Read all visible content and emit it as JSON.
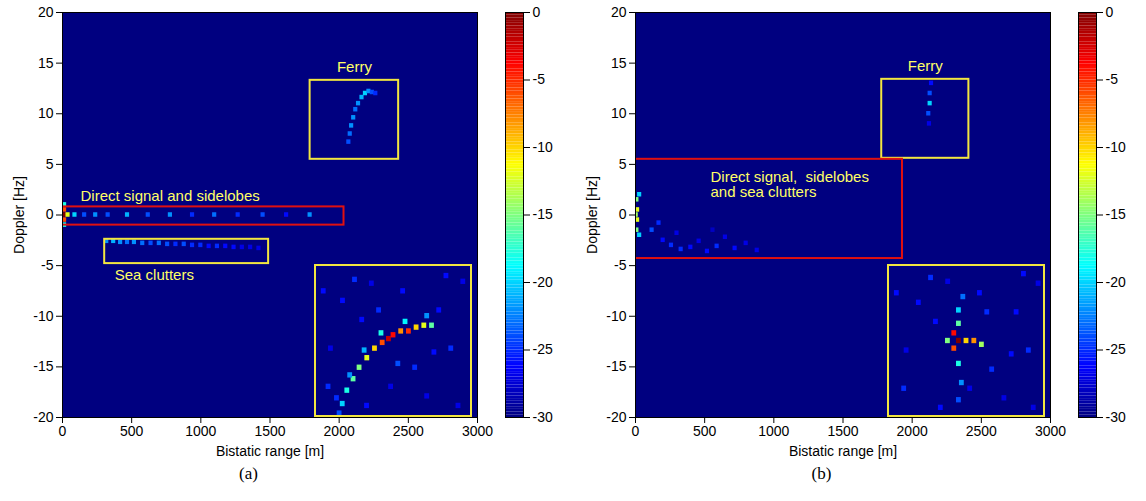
{
  "chart_data": [
    {
      "type": "heatmap",
      "caption": "(a)",
      "x_label": "Bistatic range [m]",
      "y_label": "Doppler [Hz]",
      "xlim": [
        0,
        3000
      ],
      "xticks": [
        0,
        500,
        1000,
        1500,
        2000,
        2500,
        3000
      ],
      "ylim": [
        -20,
        20
      ],
      "yticks": [
        -20,
        -15,
        -10,
        -5,
        0,
        5,
        10,
        15,
        20
      ],
      "clim": [
        -30,
        0
      ],
      "cticks": [
        0,
        -5,
        -10,
        -15,
        -20,
        -25,
        -30
      ],
      "cells": [
        [
          15,
          0,
          0
        ],
        [
          15,
          0.5,
          -6
        ],
        [
          15,
          -0.5,
          -6
        ],
        [
          40,
          0,
          -12
        ],
        [
          15,
          1,
          -18
        ],
        [
          15,
          -1,
          -18
        ],
        [
          90,
          0,
          -20
        ],
        [
          160,
          0,
          -24
        ],
        [
          240,
          0,
          -22
        ],
        [
          330,
          0,
          -24
        ],
        [
          470,
          0,
          -21
        ],
        [
          620,
          0,
          -24
        ],
        [
          780,
          0,
          -22
        ],
        [
          940,
          0,
          -25
        ],
        [
          1100,
          0,
          -23
        ],
        [
          1270,
          0,
          -25
        ],
        [
          1450,
          0,
          -24
        ],
        [
          1620,
          0,
          -26
        ],
        [
          1790,
          0,
          -22
        ],
        [
          320,
          -2.6,
          -22
        ],
        [
          370,
          -2.6,
          -21
        ],
        [
          420,
          -2.7,
          -22
        ],
        [
          470,
          -2.7,
          -23
        ],
        [
          520,
          -2.7,
          -22
        ],
        [
          580,
          -2.8,
          -23
        ],
        [
          640,
          -2.8,
          -24
        ],
        [
          700,
          -2.8,
          -23
        ],
        [
          760,
          -2.9,
          -24
        ],
        [
          820,
          -2.9,
          -25
        ],
        [
          880,
          -2.9,
          -24
        ],
        [
          940,
          -3.0,
          -25
        ],
        [
          1000,
          -3.0,
          -25
        ],
        [
          1060,
          -3.1,
          -26
        ],
        [
          1120,
          -3.1,
          -25
        ],
        [
          1180,
          -3.1,
          -26
        ],
        [
          1240,
          -3.2,
          -26
        ],
        [
          1300,
          -3.2,
          -27
        ],
        [
          1360,
          -3.2,
          -27
        ],
        [
          1420,
          -3.3,
          -27
        ],
        [
          2070,
          7.2,
          -24
        ],
        [
          2080,
          8.0,
          -23
        ],
        [
          2090,
          8.8,
          -22
        ],
        [
          2105,
          9.6,
          -22
        ],
        [
          2120,
          10.4,
          -23
        ],
        [
          2140,
          11.0,
          -22
        ],
        [
          2165,
          11.6,
          -21
        ],
        [
          2190,
          12.0,
          -20
        ],
        [
          2215,
          12.2,
          -22
        ],
        [
          2240,
          12.1,
          -24
        ],
        [
          2265,
          12.0,
          -25
        ]
      ],
      "annotations": [
        {
          "label": "Ferry",
          "color": "#f2e640",
          "x1": 1790,
          "x2": 2430,
          "y1": 5.5,
          "y2": 13.3,
          "anchor": "above"
        },
        {
          "label": "Direct signal and sidelobes",
          "color": "#e01010",
          "x1": 0,
          "x2": 2035,
          "y1": -1.0,
          "y2": 0.8,
          "anchor": "above-left"
        },
        {
          "label": "Sea clutters",
          "color": "#f2e640",
          "x1": 305,
          "x2": 1490,
          "y1": -4.8,
          "y2": -2.4,
          "anchor": "below-left"
        }
      ],
      "inset": {
        "color": "#f2e640",
        "xlim": [
          1790,
          2430
        ],
        "ylim": [
          5.5,
          13.3
        ],
        "cells": [
          [
            1886,
            5.6,
            -24
          ],
          [
            1899,
            6.1,
            -20
          ],
          [
            1918,
            6.8,
            -18
          ],
          [
            1944,
            7.4,
            -16
          ],
          [
            1969,
            8.0,
            -15
          ],
          [
            2001,
            8.5,
            -12
          ],
          [
            2033,
            9.0,
            -10
          ],
          [
            2065,
            9.3,
            -6
          ],
          [
            2091,
            9.5,
            -2
          ],
          [
            2110,
            9.7,
            -4
          ],
          [
            2142,
            9.9,
            -8
          ],
          [
            2174,
            9.9,
            -5
          ],
          [
            2206,
            10.1,
            -10
          ],
          [
            2238,
            10.2,
            -12
          ],
          [
            2270,
            10.2,
            -16
          ],
          [
            1930,
            7.6,
            -22
          ],
          [
            1990,
            8.9,
            -21
          ],
          [
            2060,
            9.8,
            -18
          ],
          [
            2160,
            10.4,
            -19
          ],
          [
            2250,
            10.7,
            -22
          ],
          [
            1875,
            6.4,
            -25
          ],
          [
            1820,
            12,
            -26
          ],
          [
            1850,
            9,
            -27
          ],
          [
            1900,
            11.5,
            -26
          ],
          [
            1950,
            12.6,
            -25
          ],
          [
            2000,
            6,
            -26
          ],
          [
            2050,
            11,
            -25
          ],
          [
            2100,
            7,
            -27
          ],
          [
            2150,
            12,
            -26
          ],
          [
            2200,
            8,
            -25
          ],
          [
            2250,
            6.5,
            -27
          ],
          [
            2300,
            11,
            -26
          ],
          [
            2350,
            9,
            -25
          ],
          [
            2400,
            12.5,
            -27
          ],
          [
            1840,
            7,
            -25
          ],
          [
            1980,
            10.5,
            -26
          ],
          [
            2130,
            8.2,
            -24
          ],
          [
            2280,
            8.8,
            -26
          ],
          [
            2380,
            6,
            -27
          ],
          [
            2020,
            12.4,
            -27
          ],
          [
            2330,
            12.8,
            -26
          ]
        ]
      }
    },
    {
      "type": "heatmap",
      "caption": "(b)",
      "x_label": "Bistatic range [m]",
      "y_label": "Doppler [Hz]",
      "xlim": [
        0,
        3000
      ],
      "xticks": [
        0,
        500,
        1000,
        1500,
        2000,
        2500,
        3000
      ],
      "ylim": [
        -20,
        20
      ],
      "yticks": [
        -20,
        -15,
        -10,
        -5,
        0,
        5,
        10,
        15,
        20
      ],
      "clim": [
        -30,
        0
      ],
      "cticks": [
        0,
        -5,
        -10,
        -15,
        -20,
        -25,
        -30
      ],
      "cells": [
        [
          10,
          1.5,
          -15
        ],
        [
          15,
          0.5,
          -12
        ],
        [
          15,
          -0.5,
          -12
        ],
        [
          10,
          -1.5,
          -15
        ],
        [
          30,
          2,
          -20
        ],
        [
          30,
          -2,
          -20
        ],
        [
          5,
          0,
          -14
        ],
        [
          120,
          -1.5,
          -24
        ],
        [
          200,
          -2.5,
          -26
        ],
        [
          260,
          -3.0,
          -25
        ],
        [
          330,
          -3.4,
          -25
        ],
        [
          400,
          -3.2,
          -26
        ],
        [
          460,
          -2.6,
          -27
        ],
        [
          520,
          -3.6,
          -26
        ],
        [
          590,
          -3.1,
          -25
        ],
        [
          650,
          -2.2,
          -27
        ],
        [
          720,
          -3.3,
          -26
        ],
        [
          800,
          -2.8,
          -27
        ],
        [
          880,
          -3.5,
          -27
        ],
        [
          170,
          -0.8,
          -25
        ],
        [
          300,
          -1.8,
          -27
        ],
        [
          560,
          -1.5,
          -28
        ],
        [
          2130,
          11,
          -20
        ],
        [
          2130,
          12,
          -24
        ],
        [
          2120,
          10,
          -24
        ],
        [
          2140,
          13,
          -26
        ],
        [
          2125,
          9,
          -27
        ]
      ],
      "annotations": [
        {
          "label": "Ferry",
          "color": "#f2e640",
          "x1": 1780,
          "x2": 2410,
          "y1": 5.6,
          "y2": 13.4,
          "anchor": "above"
        },
        {
          "label": [
            "Direct signal,  sidelobes",
            "and sea clutters"
          ],
          "color": "#e01010",
          "x1": 0,
          "x2": 1930,
          "y1": -4.3,
          "y2": 5.5,
          "anchor": "inside-left"
        }
      ],
      "inset": {
        "color": "#f2e640",
        "xlim": [
          1780,
          2410
        ],
        "ylim": [
          5.6,
          13.4
        ],
        "cells": [
          [
            2045,
            9.9,
            -4
          ],
          [
            2064,
            9.5,
            0
          ],
          [
            2045,
            9.1,
            -6
          ],
          [
            2095,
            9.5,
            -10
          ],
          [
            2127,
            9.5,
            -8
          ],
          [
            2158,
            9.3,
            -14
          ],
          [
            2064,
            10.4,
            -16
          ],
          [
            2064,
            11.1,
            -20
          ],
          [
            2082,
            11.8,
            -23
          ],
          [
            2064,
            8.3,
            -18
          ],
          [
            2076,
            7.3,
            -22
          ],
          [
            2064,
            6.4,
            -24
          ],
          [
            2019,
            9.5,
            -15
          ],
          [
            1810,
            12,
            -26
          ],
          [
            1850,
            9,
            -27
          ],
          [
            1900,
            11.5,
            -26
          ],
          [
            1950,
            12.8,
            -25
          ],
          [
            1990,
            6,
            -26
          ],
          [
            2180,
            11,
            -25
          ],
          [
            2110,
            7,
            -27
          ],
          [
            2150,
            12,
            -26
          ],
          [
            2200,
            8,
            -25
          ],
          [
            2250,
            6.5,
            -27
          ],
          [
            2300,
            11,
            -26
          ],
          [
            2350,
            9,
            -25
          ],
          [
            2390,
            12.5,
            -27
          ],
          [
            1840,
            7,
            -25
          ],
          [
            1970,
            10.5,
            -26
          ],
          [
            2280,
            8.8,
            -26
          ],
          [
            2370,
            6,
            -27
          ],
          [
            2020,
            12.6,
            -27
          ],
          [
            2330,
            13,
            -26
          ]
        ]
      }
    }
  ]
}
